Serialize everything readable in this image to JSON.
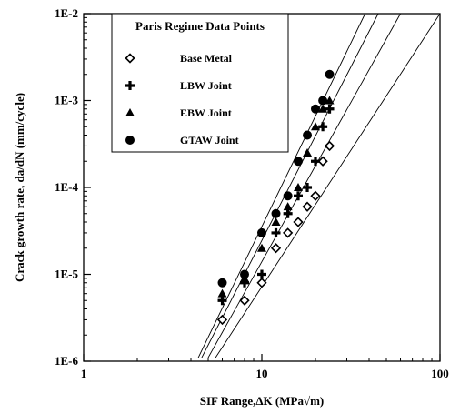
{
  "chart_data": {
    "type": "scatter",
    "xscale": "log",
    "yscale": "log",
    "xlim": [
      1,
      100
    ],
    "ylim": [
      1e-06,
      0.01
    ],
    "xlabel": "SIF Range,ΔK (MPa√m)",
    "ylabel": "Crack growth rate, da/dN (mm/cycle)",
    "x_ticks": [
      {
        "value": 1,
        "label": "1"
      },
      {
        "value": 10,
        "label": "10"
      },
      {
        "value": 100,
        "label": "100"
      }
    ],
    "y_ticks": [
      {
        "value": 1e-06,
        "label": "1E-6"
      },
      {
        "value": 1e-05,
        "label": "1E-5"
      },
      {
        "value": 0.0001,
        "label": "1E-4"
      },
      {
        "value": 0.001,
        "label": "1E-3"
      },
      {
        "value": 0.01,
        "label": "1E-2"
      }
    ],
    "grid": false,
    "legend": {
      "title": "Paris Regime Data Points",
      "placement": "top-left"
    },
    "series": [
      {
        "name": "Base Metal",
        "marker": "diamond-open",
        "points": [
          [
            6,
            3e-06
          ],
          [
            8,
            5e-06
          ],
          [
            10,
            8e-06
          ],
          [
            12,
            2e-05
          ],
          [
            14,
            3e-05
          ],
          [
            16,
            4e-05
          ],
          [
            18,
            6e-05
          ],
          [
            20,
            8e-05
          ],
          [
            22,
            0.0002
          ],
          [
            24,
            0.0003
          ]
        ]
      },
      {
        "name": "LBW Joint",
        "marker": "plus",
        "points": [
          [
            6,
            5e-06
          ],
          [
            8,
            8e-06
          ],
          [
            10,
            1e-05
          ],
          [
            12,
            3e-05
          ],
          [
            14,
            5e-05
          ],
          [
            16,
            8e-05
          ],
          [
            18,
            0.0001
          ],
          [
            20,
            0.0002
          ],
          [
            22,
            0.0005
          ],
          [
            24,
            0.0008
          ]
        ]
      },
      {
        "name": "EBW Joint",
        "marker": "triangle",
        "points": [
          [
            6,
            6e-06
          ],
          [
            8,
            9e-06
          ],
          [
            10,
            2e-05
          ],
          [
            12,
            4e-05
          ],
          [
            14,
            6e-05
          ],
          [
            16,
            0.0001
          ],
          [
            18,
            0.00025
          ],
          [
            20,
            0.0005
          ],
          [
            22,
            0.0008
          ],
          [
            24,
            0.001
          ]
        ]
      },
      {
        "name": "GTAW Joint",
        "marker": "circle",
        "points": [
          [
            6,
            8e-06
          ],
          [
            8,
            1e-05
          ],
          [
            10,
            3e-05
          ],
          [
            12,
            5e-05
          ],
          [
            14,
            8e-05
          ],
          [
            16,
            0.0002
          ],
          [
            18,
            0.0004
          ],
          [
            20,
            0.0008
          ],
          [
            22,
            0.001
          ],
          [
            24,
            0.002
          ]
        ]
      }
    ],
    "fit_lines": [
      {
        "series": "Base Metal",
        "points": [
          [
            5.5,
            1.1e-06
          ],
          [
            100,
            0.01
          ]
        ]
      },
      {
        "series": "LBW Joint",
        "points": [
          [
            5,
            1.1e-06
          ],
          [
            60,
            0.01
          ]
        ]
      },
      {
        "series": "EBW Joint",
        "points": [
          [
            4.6,
            1.1e-06
          ],
          [
            45,
            0.01
          ]
        ]
      },
      {
        "series": "GTAW Joint",
        "points": [
          [
            4.4,
            1.1e-06
          ],
          [
            38,
            0.01
          ]
        ]
      }
    ]
  }
}
